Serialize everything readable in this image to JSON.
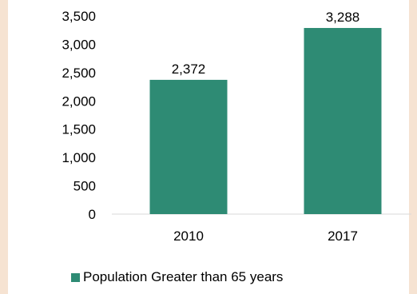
{
  "chart_data": {
    "type": "bar",
    "categories": [
      "2010",
      "2017"
    ],
    "series": [
      {
        "name": "Population Greater than 65 years",
        "values": [
          2372,
          3288
        ]
      }
    ],
    "data_labels": [
      "2,372",
      "3,288"
    ],
    "y_ticks": [
      "0",
      "500",
      "1,000",
      "1,500",
      "2,000",
      "2,500",
      "3,000",
      "3,500"
    ],
    "ylim": [
      0,
      3500
    ],
    "gridlines": false,
    "legend_position": "bottom",
    "bar_color": "#2e8b74",
    "page_background": "#f6e3d2"
  }
}
